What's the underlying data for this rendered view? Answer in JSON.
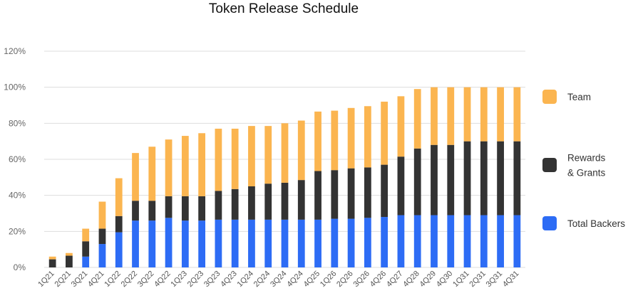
{
  "chart_data": {
    "type": "bar",
    "stacked": true,
    "title": "Token Release Schedule",
    "xlabel": "",
    "ylabel": "",
    "ylim": [
      0,
      120
    ],
    "yticks": [
      "0%",
      "20%",
      "40%",
      "60%",
      "80%",
      "100%",
      "120%"
    ],
    "grid": true,
    "legend_position": "right",
    "categories": [
      "1Q21",
      "2Q21",
      "3Q21",
      "4Q21",
      "1Q22",
      "2Q22",
      "3Q22",
      "4Q22",
      "1Q23",
      "2Q23",
      "3Q23",
      "4Q23",
      "1Q24",
      "2Q24",
      "3Q24",
      "4Q24",
      "4Q25",
      "1Q26",
      "2Q26",
      "3Q26",
      "4Q26",
      "4Q27",
      "4Q28",
      "4Q29",
      "4Q30",
      "1Q31",
      "2Q31",
      "3Q31",
      "4Q31"
    ],
    "series": [
      {
        "name": "Total Backers",
        "color": "#2d6cf5",
        "values": [
          0,
          0,
          6,
          13,
          19.5,
          26,
          26,
          27.5,
          26,
          26,
          26.5,
          26.5,
          26.5,
          26.5,
          26.5,
          26.5,
          26.5,
          27,
          27,
          27.5,
          28,
          29,
          29,
          29,
          29,
          29,
          29,
          29,
          29
        ]
      },
      {
        "name": "Rewards & Grants",
        "color": "#333333",
        "values": [
          4.5,
          6.5,
          8.5,
          8.5,
          9,
          11,
          11,
          12,
          13.5,
          13.5,
          16,
          17,
          18.5,
          20,
          20.5,
          22,
          27,
          27,
          28,
          28,
          29,
          32.5,
          37,
          39,
          39,
          41,
          41,
          41,
          41
        ]
      },
      {
        "name": "Team",
        "color": "#fbb550",
        "values": [
          1.5,
          1.5,
          7,
          15,
          21,
          26.5,
          30,
          31.5,
          33.5,
          35,
          34.5,
          33.5,
          33.5,
          32,
          33,
          33,
          33,
          33,
          33.5,
          34,
          35,
          33.5,
          33,
          32,
          32,
          30,
          30,
          30,
          30
        ]
      }
    ]
  }
}
